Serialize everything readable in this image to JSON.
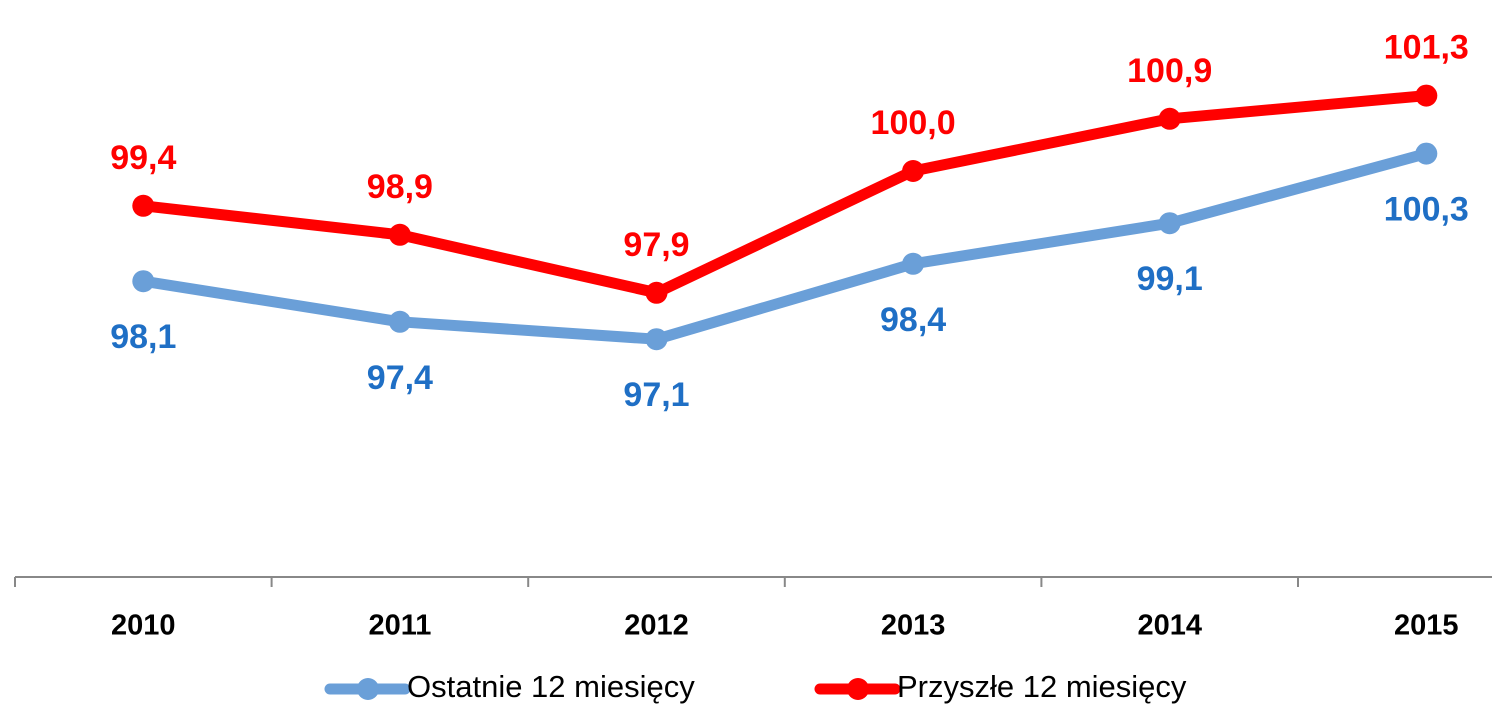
{
  "chart_data": {
    "type": "line",
    "categories": [
      "2010",
      "2011",
      "2012",
      "2013",
      "2014",
      "2015"
    ],
    "series": [
      {
        "name": "Ostatnie 12 miesięcy",
        "color": "#6a9fd8",
        "label_color": "#1f6fc5",
        "values": [
          98.1,
          97.4,
          97.1,
          98.4,
          99.1,
          100.3
        ],
        "value_labels": [
          "98,1",
          "97,4",
          "97,1",
          "98,4",
          "99,1",
          "100,3"
        ]
      },
      {
        "name": "Przyszłe 12 miesięcy",
        "color": "#ff0000",
        "label_color": "#ff0000",
        "values": [
          99.4,
          98.9,
          97.9,
          100.0,
          100.9,
          101.3
        ],
        "value_labels": [
          "99,4",
          "98,9",
          "97,9",
          "100,0",
          "100,9",
          "101,3"
        ]
      }
    ],
    "ylim": [
      93,
      103
    ]
  }
}
